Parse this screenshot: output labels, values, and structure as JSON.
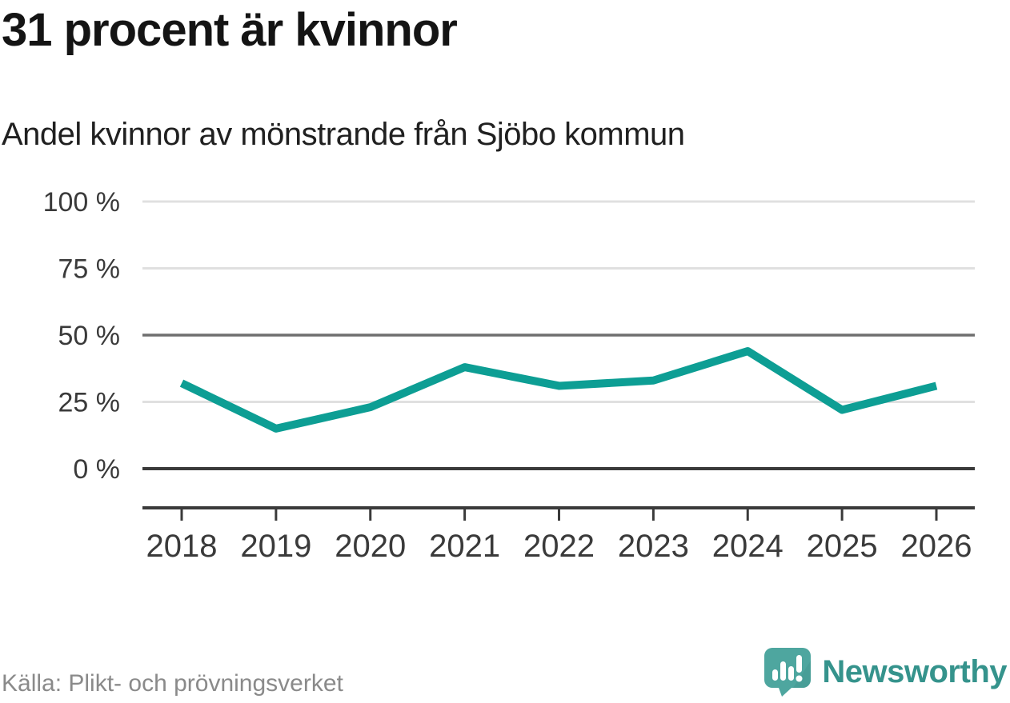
{
  "title": "31 procent är kvinnor",
  "subtitle": "Andel kvinnor av mönstrande från Sjöbo kommun",
  "source": "Källa: Plikt- och prövningsverket",
  "brand": {
    "name": "Newsworthy",
    "icon": "speech-bubble-bar-chart-icon",
    "wordmark_color": "#35938C",
    "bubble_color": "#4EA69F"
  },
  "colors": {
    "line": "#0D9E94",
    "grid_light": "#E0E0E0",
    "grid_mid": "#6F6F6F",
    "axis_dark": "#3A3A3A",
    "tick_text": "#3A3A3A",
    "title_text": "#141414",
    "subtitle_text": "#202020",
    "source_text": "#8A8A8A"
  },
  "chart_data": {
    "type": "line",
    "title": "31 procent är kvinnor",
    "subtitle": "Andel kvinnor av mönstrande från Sjöbo kommun",
    "x": [
      2018,
      2019,
      2020,
      2021,
      2022,
      2023,
      2024,
      2025,
      2026
    ],
    "series": [
      {
        "name": "Andel kvinnor av mönstrande från Sjöbo kommun",
        "values": [
          32,
          15,
          23,
          38,
          31,
          33,
          44,
          22,
          31
        ],
        "unit": "%",
        "color": "#0D9E94"
      }
    ],
    "xlabel": "",
    "ylabel": "",
    "ylim": [
      0,
      100
    ],
    "yticks": [
      0,
      25,
      50,
      75,
      100
    ],
    "ytick_labels": [
      "0 %",
      "25 %",
      "50 %",
      "75 %",
      "100 %"
    ],
    "xtick_labels": [
      "2018",
      "2019",
      "2020",
      "2021",
      "2022",
      "2023",
      "2024",
      "2025",
      "2026"
    ],
    "grid": "horizontal",
    "legend": "none",
    "annotation": "latest value 31 % (2026)"
  }
}
